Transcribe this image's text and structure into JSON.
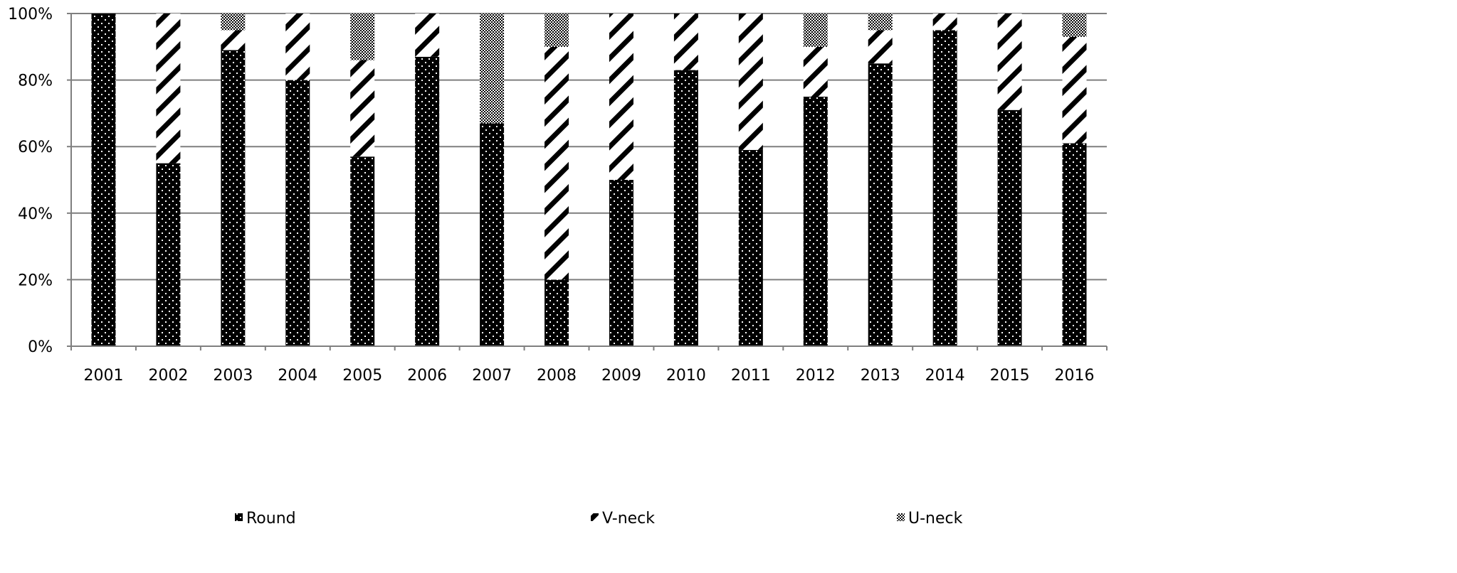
{
  "chart_data": {
    "type": "bar",
    "stacked": "percent",
    "title": "",
    "xlabel": "",
    "ylabel": "",
    "ylim": [
      0,
      100
    ],
    "yticks": [
      "0%",
      "20%",
      "40%",
      "60%",
      "80%",
      "100%"
    ],
    "grid": true,
    "legend_position": "bottom",
    "categories": [
      "2001",
      "2002",
      "2003",
      "2004",
      "2005",
      "2006",
      "2007",
      "2008",
      "2009",
      "2010",
      "2011",
      "2012",
      "2013",
      "2014",
      "2015",
      "2016"
    ],
    "series": [
      {
        "name": "Round",
        "pattern": "dots-on-black",
        "values": [
          100,
          55,
          89,
          80,
          57,
          87,
          67,
          20,
          50,
          83,
          59,
          75,
          85,
          95,
          71,
          61
        ]
      },
      {
        "name": "V-neck",
        "pattern": "diagonal-stripes",
        "values": [
          0,
          45,
          6,
          20,
          29,
          13,
          0,
          70,
          50,
          17,
          41,
          15,
          10,
          5,
          29,
          32
        ]
      },
      {
        "name": "U-neck",
        "pattern": "checker",
        "values": [
          0,
          0,
          5,
          0,
          14,
          0,
          33,
          10,
          0,
          0,
          0,
          10,
          5,
          0,
          0,
          7
        ]
      }
    ]
  }
}
